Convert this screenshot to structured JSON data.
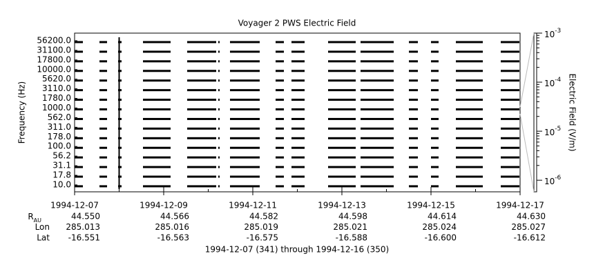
{
  "chart_data": {
    "type": "spectrogram",
    "title": "Voyager 2 PWS Electric Field",
    "ylabel": "Frequency (Hz)",
    "categories": [
      "56200.0",
      "31100.0",
      "17800.0",
      "10000.0",
      "5620.0",
      "3110.0",
      "1780.0",
      "1000.0",
      "562.0",
      "311.0",
      "178.0",
      "100.0",
      "56.2",
      "31.1",
      "17.8",
      "10.0"
    ],
    "xlim": [
      "1994-12-07",
      "1994-12-17"
    ],
    "xticks": [
      "1994-12-07",
      "1994-12-09",
      "1994-12-11",
      "1994-12-13",
      "1994-12-15",
      "1994-12-17"
    ],
    "ephemeris": [
      {
        "label": "R",
        "subscript": "AU",
        "values": [
          "44.550",
          "44.566",
          "44.582",
          "44.598",
          "44.614",
          "44.630"
        ]
      },
      {
        "label": "Lon",
        "values": [
          "285.013",
          "285.016",
          "285.019",
          "285.021",
          "285.024",
          "285.027"
        ]
      },
      {
        "label": "Lat",
        "values": [
          "-16.551",
          "-16.563",
          "-16.575",
          "-16.588",
          "-16.600",
          "-16.612"
        ]
      }
    ],
    "footer": "1994-12-07 (341) through 1994-12-16 (350)",
    "y2label": "Electric Field (V/m)",
    "y2scale": "log",
    "y2lim": [
      5.8e-07,
      0.001
    ],
    "y2ticks": [
      {
        "value": 0.001,
        "label": "10",
        "exponent": "-3"
      },
      {
        "value": 0.0001,
        "label": "10",
        "exponent": "-4"
      },
      {
        "value": 1e-05,
        "label": "10",
        "exponent": "-5"
      },
      {
        "value": 1e-06,
        "label": "10",
        "exponent": "-6"
      }
    ],
    "color": "#000000"
  }
}
